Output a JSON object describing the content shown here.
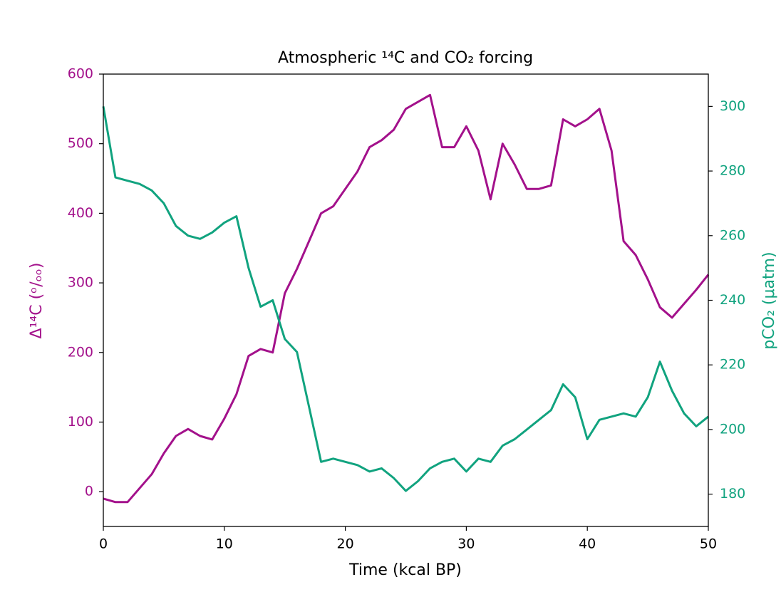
{
  "chart_data": {
    "type": "line",
    "title": "Atmospheric ¹⁴C and CO₂ forcing",
    "x_label": "Time (kcal BP)",
    "y_label": "Δ¹⁴C (ᵒ/ₒₒ)",
    "y2_label": "pCO₂ (μatm)",
    "x": [
      0,
      1,
      2,
      3,
      4,
      5,
      6,
      7,
      8,
      9,
      10,
      11,
      12,
      13,
      14,
      15,
      16,
      17,
      18,
      19,
      20,
      21,
      22,
      23,
      24,
      25,
      26,
      27,
      28,
      29,
      30,
      31,
      32,
      33,
      34,
      35,
      36,
      37,
      38,
      39,
      40,
      41,
      42,
      43,
      44,
      45,
      46,
      47,
      48,
      49,
      50
    ],
    "series": [
      {
        "name": "Δ¹⁴C",
        "color": "#a3118b",
        "values": [
          -10,
          -15,
          -15,
          5,
          25,
          55,
          80,
          90,
          80,
          75,
          105,
          140,
          195,
          205,
          200,
          285,
          320,
          360,
          400,
          410,
          435,
          460,
          495,
          505,
          520,
          550,
          560,
          570,
          495,
          495,
          525,
          490,
          420,
          500,
          470,
          435,
          435,
          440,
          535,
          525,
          535,
          550,
          490,
          360,
          340,
          305,
          265,
          250,
          270,
          290,
          312
        ]
      },
      {
        "name": "pCO₂",
        "color": "#11a37f",
        "axis": "y2",
        "values": [
          300,
          278,
          277,
          276,
          274,
          270,
          263,
          260,
          259,
          261,
          264,
          266,
          250,
          238,
          240,
          228,
          224,
          207,
          190,
          191,
          190,
          189,
          187,
          188,
          185,
          181,
          184,
          188,
          190,
          191,
          187,
          191,
          190,
          195,
          197,
          200,
          203,
          206,
          214,
          210,
          197,
          203,
          204,
          205,
          204,
          210,
          221,
          212,
          205,
          201,
          204
        ]
      }
    ],
    "xlim": [
      0,
      50
    ],
    "xticks": [
      0,
      10,
      20,
      30,
      40,
      50
    ],
    "ylim": [
      -50,
      600
    ],
    "yticks": [
      0,
      100,
      200,
      300,
      400,
      500,
      600
    ],
    "y2lim": [
      170,
      310
    ],
    "y2ticks": [
      180,
      200,
      220,
      240,
      260,
      280,
      300
    ],
    "grid": false
  }
}
